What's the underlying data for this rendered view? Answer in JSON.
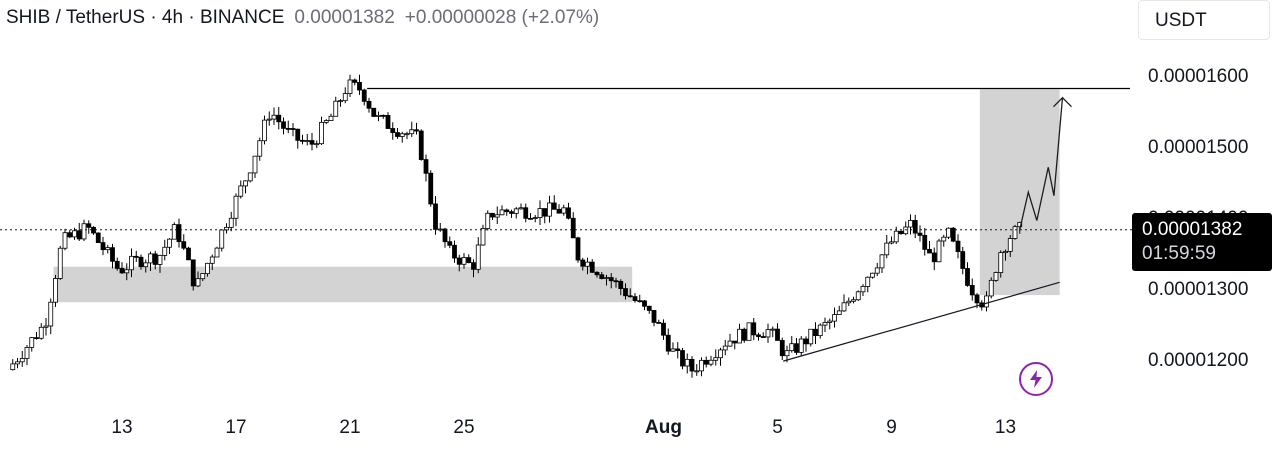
{
  "header": {
    "symbol": "SHIB / TetherUS · 4h · BINANCE",
    "price": "0.00001382",
    "change": "+0.00000028 (+2.07%)"
  },
  "currency_button": "USDT",
  "price_label": {
    "price": "0.00001382",
    "countdown": "01:59:59"
  },
  "icons": {
    "bolt": "lightning-bolt-icon"
  },
  "colors": {
    "candle": "#000000",
    "zone": "#d3d3d3",
    "accent": "#8e24aa"
  },
  "chart_data": {
    "type": "candlestick",
    "title": "SHIB / TetherUS · 4h · BINANCE",
    "y_ticks": [
      "0.00001600",
      "0.00001500",
      "0.00001400",
      "0.00001300",
      "0.00001200"
    ],
    "y_tick_values": [
      1.6e-05,
      1.5e-05,
      1.4e-05,
      1.3e-05,
      1.2e-05
    ],
    "x_ticks": [
      {
        "label": "13",
        "t": 13,
        "bold": false
      },
      {
        "label": "17",
        "t": 17,
        "bold": false
      },
      {
        "label": "21",
        "t": 21,
        "bold": false
      },
      {
        "label": "25",
        "t": 25,
        "bold": false
      },
      {
        "label": "Aug",
        "t": 32,
        "bold": true
      },
      {
        "label": "5",
        "t": 36,
        "bold": false
      },
      {
        "label": "9",
        "t": 40,
        "bold": false
      },
      {
        "label": "13",
        "t": 44,
        "bold": false
      }
    ],
    "x_unit": "days since Jul 1",
    "current_price": 1.382e-05,
    "price_path": [
      [
        9.0,
        1.185e-05
      ],
      [
        10.3,
        1.25e-05
      ],
      [
        10.9,
        1.365e-05
      ],
      [
        11.8,
        1.385e-05
      ],
      [
        12.9,
        1.325e-05
      ],
      [
        13.6,
        1.34e-05
      ],
      [
        14.3,
        1.345e-05
      ],
      [
        14.9,
        1.385e-05
      ],
      [
        15.6,
        1.3e-05
      ],
      [
        16.4,
        1.37e-05
      ],
      [
        17.4,
        1.46e-05
      ],
      [
        18.2,
        1.55e-05
      ],
      [
        18.9,
        1.515e-05
      ],
      [
        19.6,
        1.5e-05
      ],
      [
        20.4,
        1.545e-05
      ],
      [
        20.9,
        1.585e-05
      ],
      [
        21.4,
        1.58e-05
      ],
      [
        21.9,
        1.54e-05
      ],
      [
        22.6,
        1.525e-05
      ],
      [
        23.4,
        1.51e-05
      ],
      [
        24.0,
        1.39e-05
      ],
      [
        24.5,
        1.35e-05
      ],
      [
        25.3,
        1.33e-05
      ],
      [
        25.9,
        1.405e-05
      ],
      [
        26.8,
        1.41e-05
      ],
      [
        27.6,
        1.408e-05
      ],
      [
        28.5,
        1.41e-05
      ],
      [
        29.0,
        1.345e-05
      ],
      [
        29.9,
        1.32e-05
      ],
      [
        30.8,
        1.29e-05
      ],
      [
        31.7,
        1.255e-05
      ],
      [
        32.4,
        1.205e-05
      ],
      [
        33.0,
        1.185e-05
      ],
      [
        34.2,
        1.225e-05
      ],
      [
        35.0,
        1.24e-05
      ],
      [
        35.7,
        1.24e-05
      ],
      [
        36.3,
        1.205e-05
      ],
      [
        37.1,
        1.23e-05
      ],
      [
        38.1,
        1.26e-05
      ],
      [
        39.1,
        1.315e-05
      ],
      [
        40.0,
        1.365e-05
      ],
      [
        40.7,
        1.39e-05
      ],
      [
        41.4,
        1.34e-05
      ],
      [
        42.0,
        1.375e-05
      ],
      [
        42.8,
        1.3e-05
      ],
      [
        43.3,
        1.275e-05
      ],
      [
        43.8,
        1.35e-05
      ],
      [
        44.2,
        1.375e-05
      ],
      [
        44.5,
        1.382e-05
      ]
    ],
    "annotations": {
      "resistance_price": 1.581e-05,
      "support_zone": [
        1.28e-05,
        1.33e-05
      ],
      "target_box": {
        "x_range": [
          43.1,
          45.9
        ],
        "price_range": [
          1.29e-05,
          1.58e-05
        ]
      },
      "uptrend_line": [
        [
          36.2,
          1.197e-05
        ],
        [
          45.9,
          1.308e-05
        ]
      ],
      "projection_path": [
        [
          44.5,
          1.382e-05
        ],
        [
          44.8,
          1.435e-05
        ],
        [
          45.1,
          1.395e-05
        ],
        [
          45.5,
          1.47e-05
        ],
        [
          45.7,
          1.43e-05
        ],
        [
          46.0,
          1.568e-05
        ]
      ]
    }
  }
}
